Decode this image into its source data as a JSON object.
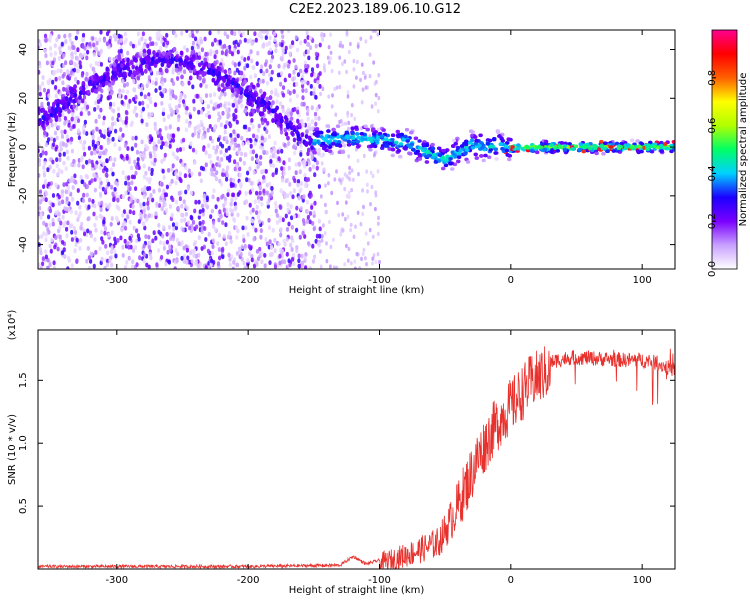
{
  "title": "C2E2.2023.189.06.10.G12",
  "chart_data": [
    {
      "type": "heatmap",
      "title": "C2E2.2023.189.06.10.G12",
      "xlabel": "Height of straight line (km)",
      "ylabel": "Frequency (Hz)",
      "xlim": [
        -360,
        125
      ],
      "ylim": [
        -50,
        48
      ],
      "xticks": [
        -300,
        -200,
        -100,
        0,
        100
      ],
      "yticks": [
        -40,
        -20,
        0,
        20,
        40
      ],
      "colorbar": {
        "label": "Normalized spectral amplitude",
        "range": [
          0,
          1
        ],
        "ticks": [
          "0.0",
          "0.2",
          "0.4",
          "0.6",
          "0.8"
        ],
        "colors": [
          "#ffffff",
          "#c8a0ff",
          "#7a00ff",
          "#1a00ff",
          "#00d0ff",
          "#00ff66",
          "#b0ff00",
          "#ffff00",
          "#ff6000",
          "#ff0000",
          "#ff0090"
        ]
      },
      "ridge": {
        "x": [
          -355,
          -330,
          -300,
          -270,
          -240,
          -210,
          -180,
          -155,
          -145,
          -120,
          -100,
          -80,
          -60,
          -50,
          -40,
          -30,
          -20,
          -10,
          0,
          20,
          50,
          80,
          100,
          125
        ],
        "y": [
          12,
          22,
          31,
          36,
          34,
          26,
          14,
          2,
          3,
          4,
          3,
          2,
          -3,
          -5,
          -2,
          1,
          0,
          1,
          0,
          0,
          0,
          0,
          0,
          0
        ]
      }
    },
    {
      "type": "line",
      "xlabel": "Height of straight line (km)",
      "ylabel": "SNR (10 * v/v)",
      "scale_label": "(x10⁴)",
      "xlim": [
        -360,
        125
      ],
      "ylim": [
        0,
        1.9
      ],
      "xticks": [
        -300,
        -200,
        -100,
        0,
        100
      ],
      "yticks": [
        0.5,
        1.0,
        1.5
      ],
      "ytick_labels": [
        "0.5",
        "1.0",
        "1.5"
      ],
      "series": [
        {
          "name": "SNR",
          "color": "#e8302c",
          "x": [
            -360,
            -300,
            -200,
            -130,
            -120,
            -110,
            -90,
            -70,
            -55,
            -45,
            -35,
            -25,
            -15,
            -5,
            5,
            15,
            25,
            35,
            45,
            55,
            70,
            90,
            100,
            110,
            125
          ],
          "y": [
            0.02,
            0.02,
            0.02,
            0.03,
            0.1,
            0.04,
            0.1,
            0.18,
            0.25,
            0.45,
            0.7,
            0.95,
            1.15,
            1.3,
            1.42,
            1.55,
            1.62,
            1.66,
            1.68,
            1.68,
            1.67,
            1.66,
            1.66,
            1.64,
            1.58
          ]
        }
      ]
    }
  ]
}
